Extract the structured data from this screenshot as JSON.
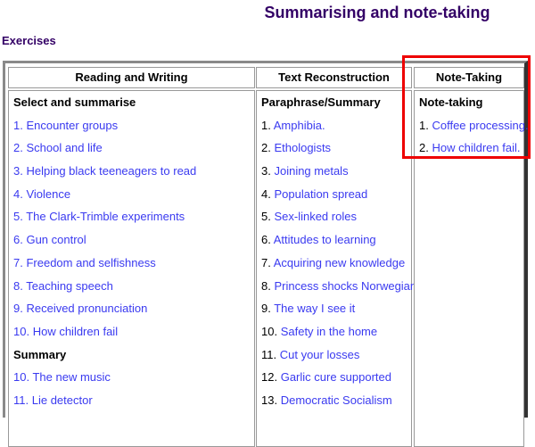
{
  "page_title": "Summarising and note-taking",
  "section_title": "Exercises",
  "highlight_color": "#ee0000",
  "columns": [
    {
      "header": "Reading and Writing",
      "groups": [
        {
          "title": "Select and summarise",
          "items": [
            {
              "num": "1.",
              "label": "Encounter groups"
            },
            {
              "num": "2.",
              "label": "School and life"
            },
            {
              "num": "3.",
              "label": "Helping black teeneagers to read"
            },
            {
              "num": "4.",
              "label": "Violence"
            },
            {
              "num": "5.",
              "label": "The Clark-Trimble experiments"
            },
            {
              "num": "6.",
              "label": "Gun control"
            },
            {
              "num": "7.",
              "label": "Freedom and selfishness"
            },
            {
              "num": "8.",
              "label": "Teaching speech"
            },
            {
              "num": "9.",
              "label": "Received pronunciation"
            },
            {
              "num": "10.",
              "label": "How children fail"
            }
          ]
        },
        {
          "title": "Summary",
          "items": [
            {
              "num": "10.",
              "label": "The new music"
            },
            {
              "num": "11.",
              "label": "Lie detector"
            }
          ]
        }
      ]
    },
    {
      "header": "Text Reconstruction",
      "groups": [
        {
          "title": "Paraphrase/Summary",
          "items": [
            {
              "num": "1.",
              "label": "Amphibia."
            },
            {
              "num": "2.",
              "label": "Ethologists"
            },
            {
              "num": "3.",
              "label": "Joining metals"
            },
            {
              "num": "4.",
              "label": "Population spread"
            },
            {
              "num": "5.",
              "label": "Sex-linked roles"
            },
            {
              "num": "6.",
              "label": "Attitudes to learning"
            },
            {
              "num": "7.",
              "label": "Acquiring new knowledge"
            },
            {
              "num": "8.",
              "label": "Princess shocks Norwegians"
            },
            {
              "num": "9.",
              "label": "The way I see it"
            },
            {
              "num": "10.",
              "label": "Safety in the home"
            },
            {
              "num": "11.",
              "label": "Cut your losses"
            },
            {
              "num": "12.",
              "label": "Garlic cure supported"
            },
            {
              "num": "13.",
              "label": "Democratic Socialism"
            }
          ]
        }
      ]
    },
    {
      "header": "Note-Taking",
      "groups": [
        {
          "title": "Note-taking",
          "items": [
            {
              "num": "1.",
              "label": "Coffee processing."
            },
            {
              "num": "2.",
              "label": "How children fail."
            }
          ]
        }
      ]
    }
  ]
}
